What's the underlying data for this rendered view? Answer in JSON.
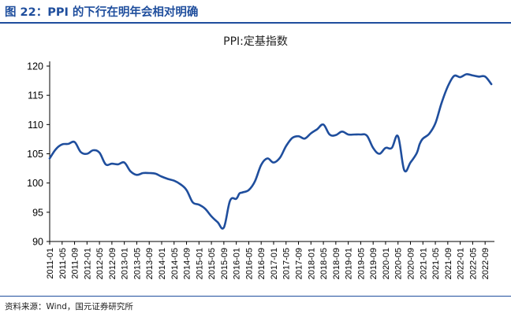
{
  "figure_title": "图 22：PPI 的下行在明年会相对明确",
  "source_note": "资料来源：Wind，国元证券研究所",
  "colors": {
    "brand": "#1f4e9d",
    "line": "#1f4e9d",
    "axis": "#000000"
  },
  "chart_data": {
    "type": "line",
    "title": "PPI:定基指数",
    "xlabel": "",
    "ylabel": "",
    "ylim": [
      90,
      120
    ],
    "y_ticks": [
      90,
      95,
      100,
      105,
      110,
      115,
      120
    ],
    "x_tick_labels": [
      "2011-01",
      "2011-05",
      "2011-09",
      "2012-01",
      "2012-05",
      "2012-09",
      "2013-01",
      "2013-05",
      "2013-09",
      "2014-01",
      "2014-05",
      "2014-09",
      "2015-01",
      "2015-05",
      "2015-09",
      "2016-01",
      "2016-05",
      "2016-09",
      "2017-01",
      "2017-05",
      "2017-09",
      "2018-01",
      "2018-05",
      "2018-09",
      "2019-01",
      "2019-05",
      "2019-09",
      "2020-01",
      "2020-05",
      "2020-09",
      "2021-01",
      "2021-05",
      "2021-09",
      "2022-01",
      "2022-05",
      "2022-09"
    ],
    "grid": false,
    "legend": "none",
    "series": [
      {
        "x": [
          "2011-01",
          "2011-03",
          "2011-05",
          "2011-07",
          "2011-09",
          "2011-11",
          "2012-01",
          "2012-03",
          "2012-05",
          "2012-07",
          "2012-09",
          "2012-11",
          "2013-01",
          "2013-03",
          "2013-05",
          "2013-07",
          "2013-09",
          "2013-11",
          "2014-01",
          "2014-03",
          "2014-05",
          "2014-07",
          "2014-09",
          "2014-11",
          "2015-01",
          "2015-03",
          "2015-05",
          "2015-07",
          "2015-09",
          "2015-11",
          "2016-01",
          "2016-02",
          "2016-03",
          "2016-05",
          "2016-07",
          "2016-09",
          "2016-11",
          "2017-01",
          "2017-03",
          "2017-05",
          "2017-07",
          "2017-09",
          "2017-11",
          "2018-01",
          "2018-03",
          "2018-05",
          "2018-07",
          "2018-09",
          "2018-11",
          "2019-01",
          "2019-03",
          "2019-05",
          "2019-07",
          "2019-09",
          "2019-11",
          "2020-01",
          "2020-03",
          "2020-05",
          "2020-07",
          "2020-09",
          "2020-11",
          "2020-12",
          "2021-01",
          "2021-03",
          "2021-05",
          "2021-07",
          "2021-09",
          "2021-11",
          "2022-01",
          "2022-03",
          "2022-05",
          "2022-07",
          "2022-09",
          "2022-11"
        ],
        "values": [
          104.2,
          105.8,
          106.6,
          106.7,
          107.0,
          105.3,
          105.0,
          105.6,
          105.2,
          103.2,
          103.3,
          103.2,
          103.5,
          102.0,
          101.4,
          101.7,
          101.7,
          101.6,
          101.1,
          100.7,
          100.4,
          99.8,
          98.8,
          96.7,
          96.3,
          95.6,
          94.3,
          93.3,
          92.4,
          97.0,
          97.3,
          98.2,
          98.4,
          98.8,
          100.3,
          103.1,
          104.2,
          103.5,
          104.3,
          106.3,
          107.7,
          108.0,
          107.6,
          108.5,
          109.2,
          110.0,
          108.3,
          108.2,
          108.8,
          108.3,
          108.3,
          108.3,
          108.1,
          106.0,
          105.0,
          106.0,
          106.0,
          108.0,
          102.2,
          103.5,
          105.1,
          106.7,
          107.6,
          108.4,
          110.2,
          113.7,
          116.5,
          118.3,
          118.1,
          118.6,
          118.4,
          118.2,
          118.2,
          116.9
        ]
      }
    ]
  }
}
